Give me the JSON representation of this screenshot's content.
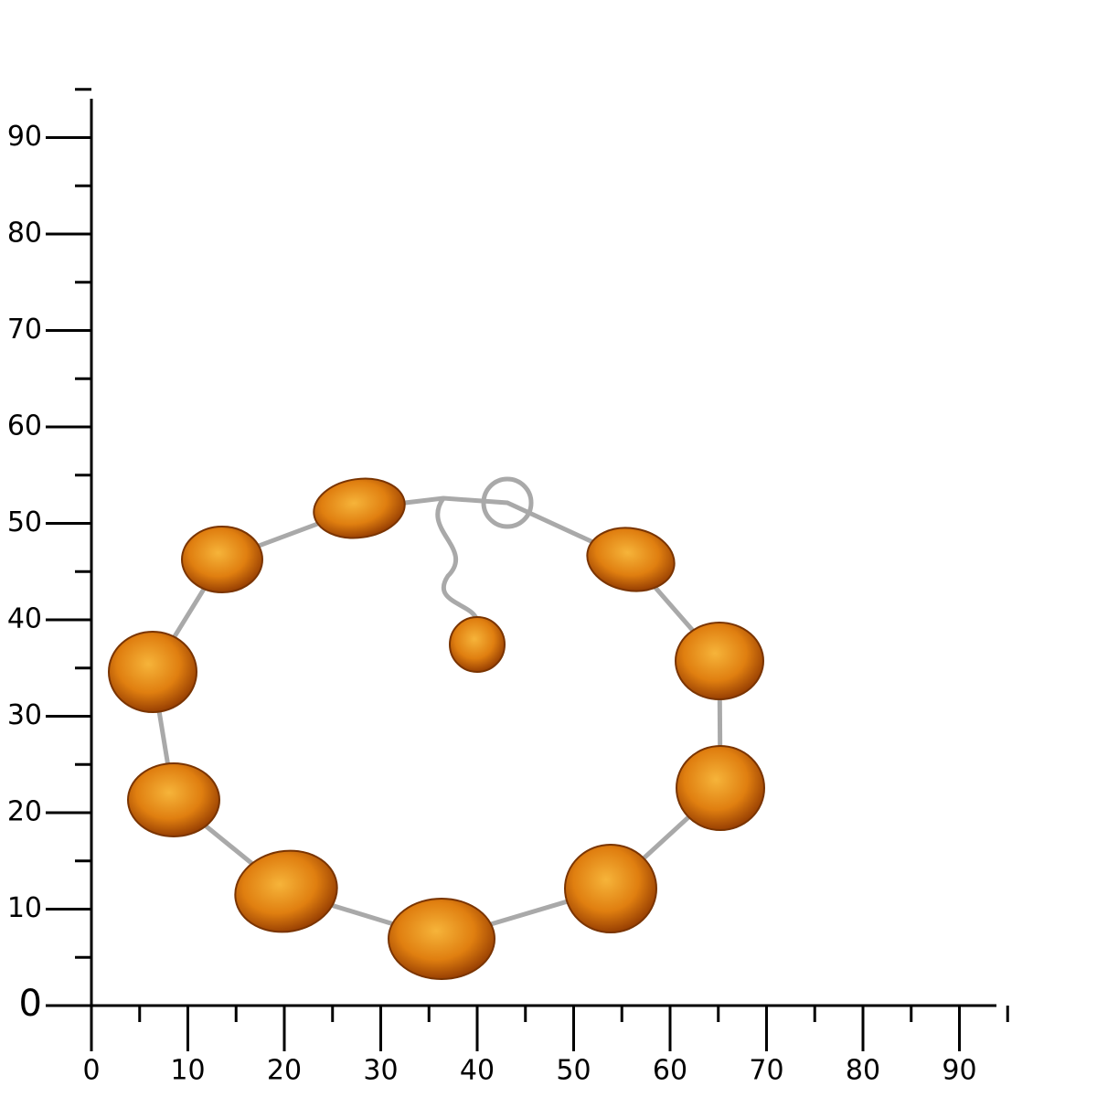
{
  "axes": {
    "x_ticks": [
      0,
      10,
      20,
      30,
      40,
      50,
      60,
      70,
      80,
      90
    ],
    "y_ticks": [
      0,
      10,
      20,
      30,
      40,
      50,
      60,
      70,
      80,
      90
    ]
  }
}
